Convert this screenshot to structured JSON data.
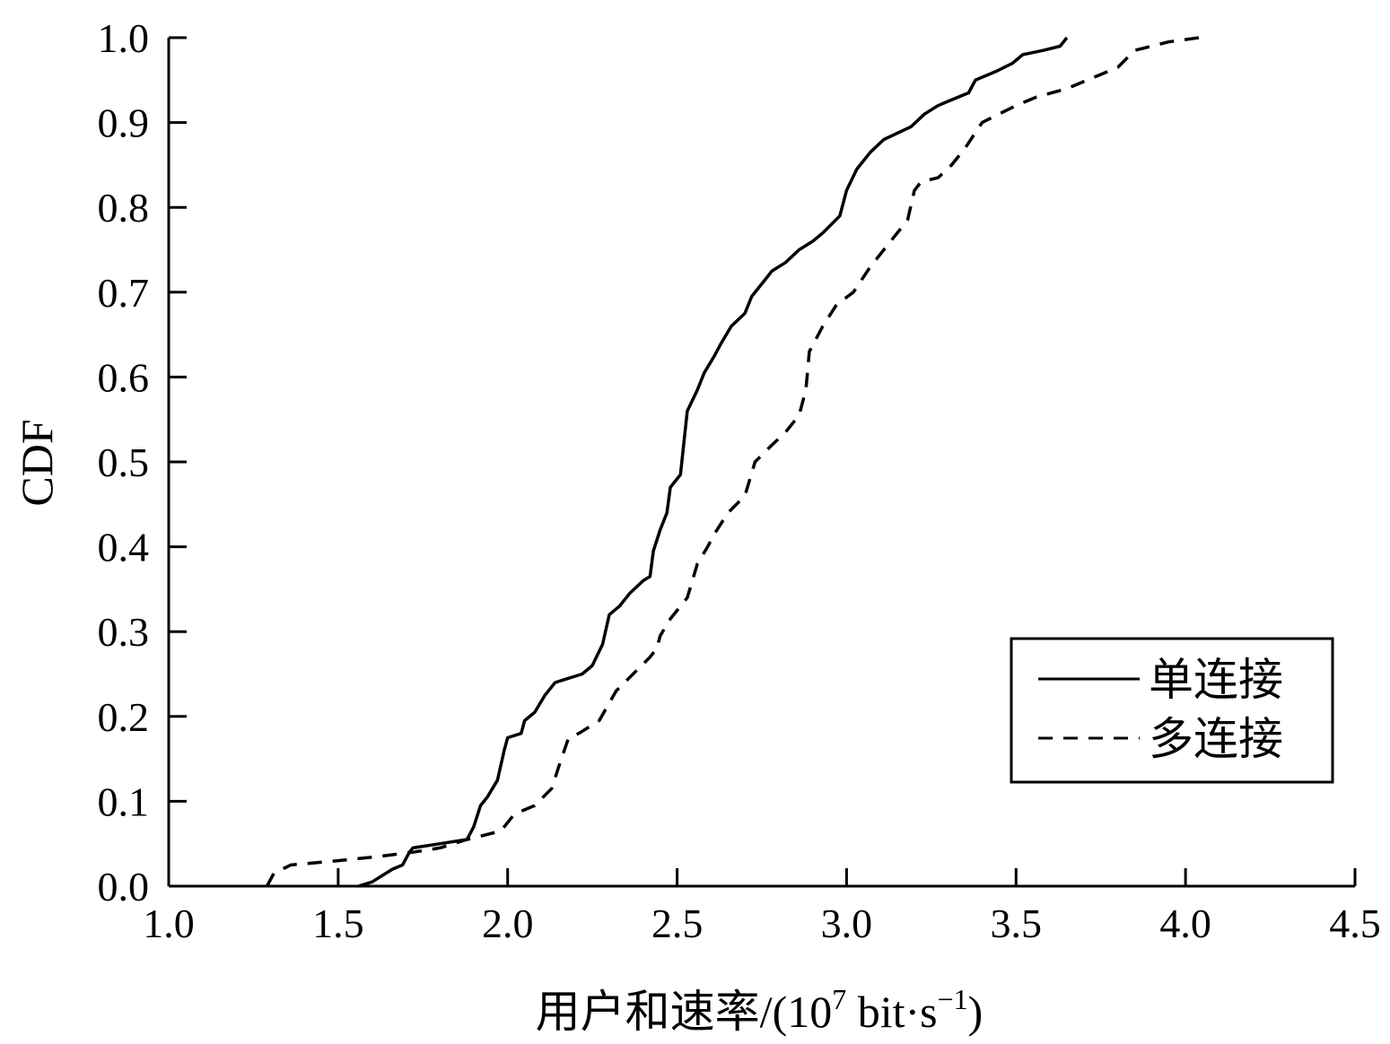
{
  "chart_data": {
    "type": "line",
    "title": "",
    "xlabel_main": "用户和速率/(10",
    "xlabel_exp": "7",
    "xlabel_unit": " bit·s",
    "xlabel_unit_exp": "−1",
    "xlabel_close": ")",
    "ylabel": "CDF",
    "xlim": [
      1.0,
      4.5
    ],
    "ylim": [
      0.0,
      1.0
    ],
    "xticks": [
      "1.0",
      "1.5",
      "2.0",
      "2.5",
      "3.0",
      "3.5",
      "4.0",
      "4.5"
    ],
    "yticks": [
      "0.0",
      "0.1",
      "0.2",
      "0.3",
      "0.4",
      "0.5",
      "0.6",
      "0.7",
      "0.8",
      "0.9",
      "1.0"
    ],
    "grid": false,
    "legend_position": "bottom-right",
    "series": [
      {
        "name": "单连接",
        "style": "solid",
        "color": "#000000",
        "points": [
          [
            1.56,
            0.0
          ],
          [
            1.6,
            0.005
          ],
          [
            1.66,
            0.02
          ],
          [
            1.69,
            0.025
          ],
          [
            1.71,
            0.04
          ],
          [
            1.72,
            0.045
          ],
          [
            1.8,
            0.05
          ],
          [
            1.88,
            0.055
          ],
          [
            1.9,
            0.07
          ],
          [
            1.92,
            0.095
          ],
          [
            1.94,
            0.105
          ],
          [
            1.97,
            0.125
          ],
          [
            1.99,
            0.16
          ],
          [
            2.0,
            0.175
          ],
          [
            2.04,
            0.18
          ],
          [
            2.05,
            0.195
          ],
          [
            2.08,
            0.205
          ],
          [
            2.11,
            0.225
          ],
          [
            2.14,
            0.24
          ],
          [
            2.18,
            0.245
          ],
          [
            2.22,
            0.25
          ],
          [
            2.25,
            0.26
          ],
          [
            2.28,
            0.285
          ],
          [
            2.3,
            0.32
          ],
          [
            2.33,
            0.33
          ],
          [
            2.36,
            0.345
          ],
          [
            2.4,
            0.36
          ],
          [
            2.42,
            0.365
          ],
          [
            2.43,
            0.395
          ],
          [
            2.45,
            0.42
          ],
          [
            2.47,
            0.44
          ],
          [
            2.48,
            0.47
          ],
          [
            2.51,
            0.485
          ],
          [
            2.53,
            0.56
          ],
          [
            2.56,
            0.585
          ],
          [
            2.58,
            0.605
          ],
          [
            2.61,
            0.625
          ],
          [
            2.63,
            0.64
          ],
          [
            2.66,
            0.66
          ],
          [
            2.7,
            0.675
          ],
          [
            2.72,
            0.695
          ],
          [
            2.76,
            0.715
          ],
          [
            2.78,
            0.725
          ],
          [
            2.82,
            0.735
          ],
          [
            2.86,
            0.75
          ],
          [
            2.9,
            0.76
          ],
          [
            2.93,
            0.77
          ],
          [
            2.98,
            0.79
          ],
          [
            3.0,
            0.82
          ],
          [
            3.03,
            0.845
          ],
          [
            3.07,
            0.865
          ],
          [
            3.11,
            0.88
          ],
          [
            3.19,
            0.895
          ],
          [
            3.23,
            0.91
          ],
          [
            3.27,
            0.92
          ],
          [
            3.3,
            0.925
          ],
          [
            3.36,
            0.935
          ],
          [
            3.38,
            0.95
          ],
          [
            3.44,
            0.96
          ],
          [
            3.49,
            0.97
          ],
          [
            3.52,
            0.98
          ],
          [
            3.58,
            0.985
          ],
          [
            3.63,
            0.99
          ],
          [
            3.65,
            1.0
          ]
        ]
      },
      {
        "name": "多连接",
        "style": "dashed",
        "color": "#000000",
        "points": [
          [
            1.29,
            0.0
          ],
          [
            1.31,
            0.015
          ],
          [
            1.36,
            0.025
          ],
          [
            1.5,
            0.03
          ],
          [
            1.62,
            0.035
          ],
          [
            1.72,
            0.04
          ],
          [
            1.8,
            0.045
          ],
          [
            1.88,
            0.055
          ],
          [
            1.98,
            0.065
          ],
          [
            2.02,
            0.085
          ],
          [
            2.08,
            0.095
          ],
          [
            2.13,
            0.115
          ],
          [
            2.15,
            0.14
          ],
          [
            2.18,
            0.175
          ],
          [
            2.21,
            0.18
          ],
          [
            2.27,
            0.195
          ],
          [
            2.32,
            0.23
          ],
          [
            2.37,
            0.25
          ],
          [
            2.42,
            0.27
          ],
          [
            2.44,
            0.28
          ],
          [
            2.45,
            0.295
          ],
          [
            2.48,
            0.315
          ],
          [
            2.5,
            0.325
          ],
          [
            2.53,
            0.34
          ],
          [
            2.56,
            0.38
          ],
          [
            2.59,
            0.4
          ],
          [
            2.61,
            0.415
          ],
          [
            2.65,
            0.44
          ],
          [
            2.7,
            0.46
          ],
          [
            2.73,
            0.5
          ],
          [
            2.78,
            0.52
          ],
          [
            2.82,
            0.535
          ],
          [
            2.86,
            0.555
          ],
          [
            2.88,
            0.585
          ],
          [
            2.89,
            0.63
          ],
          [
            2.93,
            0.66
          ],
          [
            2.97,
            0.685
          ],
          [
            3.02,
            0.7
          ],
          [
            3.07,
            0.73
          ],
          [
            3.13,
            0.76
          ],
          [
            3.18,
            0.785
          ],
          [
            3.2,
            0.82
          ],
          [
            3.22,
            0.83
          ],
          [
            3.27,
            0.835
          ],
          [
            3.31,
            0.85
          ],
          [
            3.35,
            0.87
          ],
          [
            3.4,
            0.9
          ],
          [
            3.45,
            0.91
          ],
          [
            3.5,
            0.92
          ],
          [
            3.56,
            0.93
          ],
          [
            3.65,
            0.94
          ],
          [
            3.74,
            0.955
          ],
          [
            3.8,
            0.965
          ],
          [
            3.85,
            0.985
          ],
          [
            3.95,
            0.995
          ],
          [
            4.04,
            1.0
          ]
        ]
      }
    ]
  }
}
